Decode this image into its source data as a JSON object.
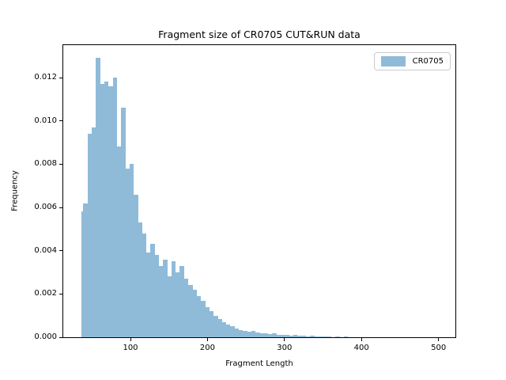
{
  "title": "Fragment size of CR0705 CUT&RUN data",
  "chart_data": {
    "type": "bar",
    "subtype": "histogram",
    "title": "Fragment size of CR0705 CUT&RUN data",
    "xlabel": "Fragment Length",
    "ylabel": "Frequency",
    "xlim": [
      12.8,
      521.9
    ],
    "ylim": [
      0,
      0.0135
    ],
    "xticks": [
      100,
      200,
      300,
      400,
      500
    ],
    "xtick_labels": [
      "100",
      "200",
      "300",
      "400",
      "500"
    ],
    "yticks": [
      0.0,
      0.002,
      0.004,
      0.006,
      0.008,
      0.01,
      0.012
    ],
    "ytick_labels": [
      "0.000",
      "0.002",
      "0.004",
      "0.006",
      "0.008",
      "0.010",
      "0.012"
    ],
    "grid": false,
    "legend": {
      "label": "CR0705",
      "position": "upper-right"
    },
    "colors": {
      "bar": "#8fbbd9",
      "spine": "#000000",
      "text": "#000000",
      "legend_border": "#cccccc",
      "background": "#ffffff"
    },
    "bins": {
      "first_edge": 36.3,
      "second_edge": 38.8,
      "width": 5.45,
      "frequencies": [
        0.0058,
        0.0062,
        0.0094,
        0.0097,
        0.0129,
        0.0117,
        0.0118,
        0.0116,
        0.012,
        0.0088,
        0.0106,
        0.0078,
        0.008,
        0.0066,
        0.0053,
        0.0048,
        0.0039,
        0.0043,
        0.0038,
        0.0033,
        0.0036,
        0.0028,
        0.0035,
        0.003,
        0.0033,
        0.0027,
        0.0024,
        0.0022,
        0.0019,
        0.0017,
        0.0014,
        0.0012,
        0.001,
        0.00085,
        0.0007,
        0.0006,
        0.0005,
        0.00042,
        0.00034,
        0.0003,
        0.00026,
        0.0003,
        0.00022,
        0.0002,
        0.00018,
        0.00015,
        0.00018,
        0.00012,
        0.0001,
        0.00012,
        8e-05,
        0.0001,
        6e-05,
        8e-05,
        4e-05,
        6e-05,
        2e-05,
        5e-05,
        2e-05,
        4e-05,
        1e-05,
        4e-05,
        1e-05,
        3e-05
      ]
    }
  }
}
